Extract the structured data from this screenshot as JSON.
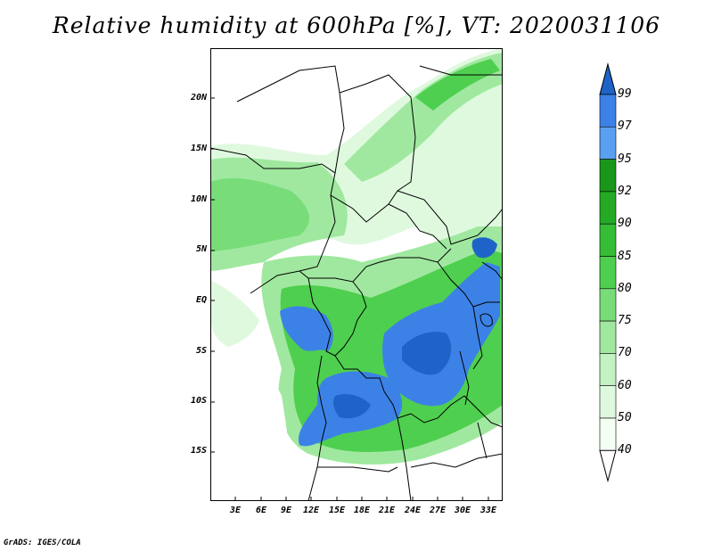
{
  "title": "Relative humidity at 600hPa [%], VT: 2020031106",
  "credit": "GrADS: IGES/COLA",
  "y_axis_labels": [
    "20N",
    "15N",
    "10N",
    "5N",
    "EQ",
    "5S",
    "10S",
    "15S"
  ],
  "x_axis_labels": [
    "3E",
    "6E",
    "9E",
    "12E",
    "15E",
    "18E",
    "21E",
    "24E",
    "27E",
    "30E",
    "33E"
  ],
  "colorbar": {
    "labels": [
      "99",
      "97",
      "95",
      "92",
      "90",
      "85",
      "80",
      "75",
      "70",
      "60",
      "50",
      "40"
    ],
    "colors": [
      "#1e64c8",
      "#3c82e6",
      "#5aa0f0",
      "#1a961a",
      "#24aa24",
      "#36bd36",
      "#4fcf4f",
      "#78dc78",
      "#a0e8a0",
      "#c2f2c2",
      "#dff9df",
      "#f3fff3",
      "#ffffff"
    ]
  },
  "map_colors": {
    "deep_blue": "#1e64c8",
    "blue": "#3c82e6",
    "dark_green": "#1a961a",
    "green": "#4fcf4f",
    "light_green": "#a0e8a0",
    "pale_green": "#dff9df"
  }
}
